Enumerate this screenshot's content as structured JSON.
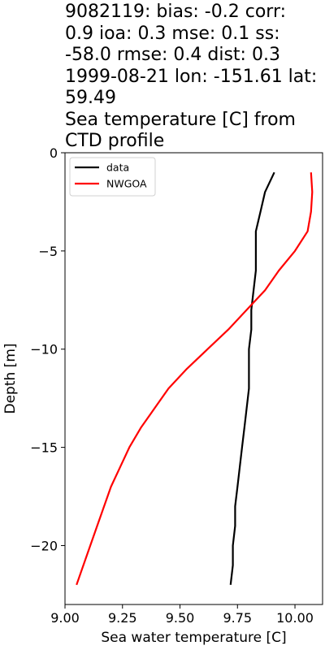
{
  "title_lines": [
    "9082119: bias: -0.2  corr:",
    "0.9  ioa: 0.3  mse: 0.1  ss:",
    "-58.0  rmse: 0.4  dist: 0.3",
    "1999-08-21 lon: -151.61 lat:",
    "59.49",
    "Sea temperature [C] from",
    "CTD profile"
  ],
  "chart_data": {
    "type": "line",
    "xlabel": "Sea water temperature [C]",
    "ylabel": "Depth [m]",
    "xlim": [
      9.0,
      10.12
    ],
    "ylim": [
      -23.0,
      0.0
    ],
    "xticks": [
      9.0,
      9.25,
      9.5,
      9.75,
      10.0
    ],
    "xtick_labels": [
      "9.00",
      "9.25",
      "9.50",
      "9.75",
      "10.00"
    ],
    "yticks": [
      0,
      -5,
      -10,
      -15,
      -20
    ],
    "ytick_labels": [
      "0",
      "−5",
      "−10",
      "−15",
      "−20"
    ],
    "grid": false,
    "legend_position": "upper-left",
    "series": [
      {
        "name": "data",
        "color": "#000000",
        "points": [
          [
            9.91,
            -1.0
          ],
          [
            9.87,
            -2.0
          ],
          [
            9.85,
            -3.0
          ],
          [
            9.83,
            -4.0
          ],
          [
            9.83,
            -5.0
          ],
          [
            9.83,
            -6.0
          ],
          [
            9.82,
            -7.0
          ],
          [
            9.81,
            -8.0
          ],
          [
            9.81,
            -9.0
          ],
          [
            9.8,
            -10.0
          ],
          [
            9.8,
            -11.0
          ],
          [
            9.8,
            -12.0
          ],
          [
            9.79,
            -13.0
          ],
          [
            9.78,
            -14.0
          ],
          [
            9.77,
            -15.0
          ],
          [
            9.76,
            -16.0
          ],
          [
            9.75,
            -17.0
          ],
          [
            9.74,
            -18.0
          ],
          [
            9.74,
            -19.0
          ],
          [
            9.73,
            -20.0
          ],
          [
            9.73,
            -21.0
          ],
          [
            9.72,
            -22.0
          ]
        ]
      },
      {
        "name": "NWGOA",
        "color": "#ff0000",
        "points": [
          [
            10.07,
            -1.0
          ],
          [
            10.075,
            -2.0
          ],
          [
            10.07,
            -3.0
          ],
          [
            10.055,
            -4.0
          ],
          [
            10.0,
            -5.0
          ],
          [
            9.93,
            -6.0
          ],
          [
            9.87,
            -7.0
          ],
          [
            9.79,
            -8.0
          ],
          [
            9.71,
            -9.0
          ],
          [
            9.62,
            -10.0
          ],
          [
            9.53,
            -11.0
          ],
          [
            9.45,
            -12.0
          ],
          [
            9.39,
            -13.0
          ],
          [
            9.33,
            -14.0
          ],
          [
            9.28,
            -15.0
          ],
          [
            9.24,
            -16.0
          ],
          [
            9.2,
            -17.0
          ],
          [
            9.17,
            -18.0
          ],
          [
            9.14,
            -19.0
          ],
          [
            9.11,
            -20.0
          ],
          [
            9.08,
            -21.0
          ],
          [
            9.05,
            -22.0
          ]
        ]
      }
    ]
  }
}
